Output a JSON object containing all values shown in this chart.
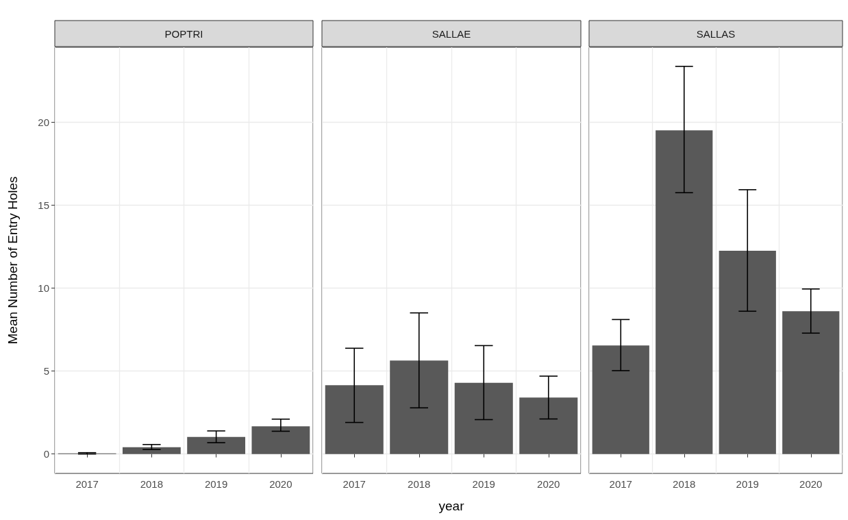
{
  "chart_data": [
    {
      "type": "bar",
      "title": "POPTRI",
      "ylabel": "Mean Number of Entry Holes",
      "categories": [
        "2017",
        "2018",
        "2019",
        "2020"
      ],
      "series": [
        {
          "color": "#595959",
          "values": [
            0.04,
            0.41,
            1.03,
            1.67
          ],
          "errors": [
            [
              0,
              0.08
            ],
            [
              0.27,
              0.57
            ],
            [
              0.68,
              1.39
            ],
            [
              1.37,
              2.1
            ]
          ]
        }
      ],
      "ylim": [
        -1.17,
        24.5
      ],
      "yticks": [
        0,
        5,
        10,
        15,
        20
      ],
      "grid": true
    },
    {
      "type": "bar",
      "title": "SALLAE",
      "xlabel": "year",
      "categories": [
        "2017",
        "2018",
        "2019",
        "2020"
      ],
      "series": [
        {
          "color": "#595959",
          "values": [
            4.14,
            5.63,
            4.29,
            3.4
          ],
          "errors": [
            [
              1.9,
              6.37
            ],
            [
              2.78,
              8.5
            ],
            [
              2.07,
              6.53
            ],
            [
              2.11,
              4.69
            ]
          ]
        }
      ],
      "ylim": [
        -1.17,
        24.5
      ],
      "yticks": [
        0,
        5,
        10,
        15,
        20
      ],
      "grid": true,
      "tick_labels": "x"
    },
    {
      "type": "bar",
      "title": "SALLAS",
      "categories": [
        "2017",
        "2018",
        "2019",
        "2020"
      ],
      "series": [
        {
          "color": "#595959",
          "values": [
            6.54,
            19.5,
            12.24,
            8.6
          ],
          "errors": [
            [
              5.02,
              8.1
            ],
            [
              15.74,
              23.35
            ],
            [
              8.6,
              15.92
            ],
            [
              7.28,
              9.94
            ]
          ]
        }
      ],
      "ylim": [
        -1.17,
        24.5
      ],
      "yticks": [
        0,
        5,
        10,
        15,
        20
      ],
      "grid": true,
      "tick_labels": "x"
    }
  ]
}
